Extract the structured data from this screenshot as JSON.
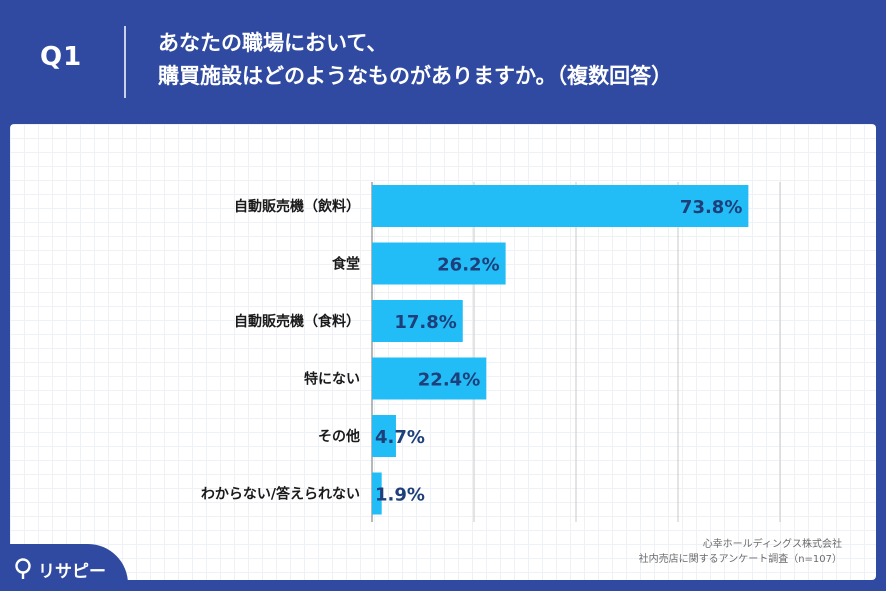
{
  "header": {
    "q_label": "Q1",
    "question_line1": "あなたの職場において、",
    "question_line2": "購買施設はどのようなものがありますか。（複数回答）"
  },
  "chart_data": {
    "type": "bar",
    "orientation": "horizontal",
    "categories": [
      "自動販売機（飲料）",
      "食堂",
      "自動販売機（食料）",
      "特にない",
      "その他",
      "わからない/答えられない"
    ],
    "values": [
      73.8,
      26.2,
      17.8,
      22.4,
      4.7,
      1.9
    ],
    "value_labels": [
      "73.8%",
      "26.2%",
      "17.8%",
      "22.4%",
      "4.7%",
      "1.9%"
    ],
    "xlim": [
      0,
      80
    ],
    "grid": "vertical",
    "bar_color": "#22bdf6"
  },
  "source": {
    "line1": "心幸ホールディングス株式会社",
    "line2": "社内売店に関するアンケート調査（n=107）"
  },
  "logo": {
    "text": "リサピー",
    "icon": "lightbulb-icon"
  },
  "colors": {
    "background": "#2f4aa0",
    "bar": "#22bdf6",
    "value_text": "#1e3f7a"
  }
}
